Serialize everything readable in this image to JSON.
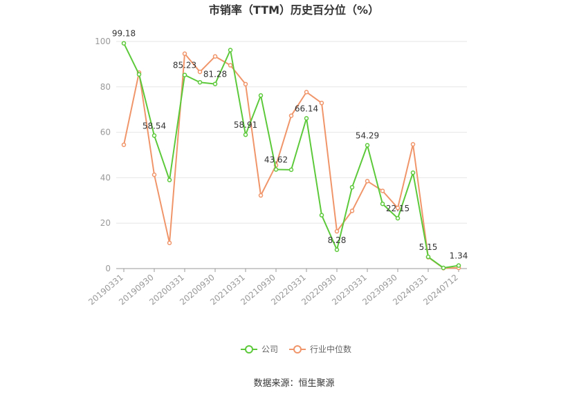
{
  "chart_data": {
    "type": "line",
    "title": "市销率（TTM）历史百分位（%）",
    "source": "数据来源：恒生聚源",
    "ylim": [
      0,
      100
    ],
    "yticks": [
      0,
      20,
      40,
      60,
      80,
      100
    ],
    "xticks": [
      "20190331",
      "20190930",
      "20200331",
      "20200930",
      "20210331",
      "20210930",
      "20220331",
      "20220930",
      "20230331",
      "20230930",
      "20240331",
      "20240712"
    ],
    "grid": true,
    "legend_position": "bottom",
    "series": [
      {
        "name": "公司",
        "color": "#5cc93a",
        "values": [
          99.18,
          85.5,
          58.54,
          39.0,
          85.23,
          82.0,
          81.28,
          96.2,
          58.91,
          76.2,
          43.62,
          43.5,
          66.14,
          23.5,
          8.28,
          35.8,
          54.29,
          28.5,
          22.15,
          42.2,
          5.15,
          0.3,
          1.34
        ]
      },
      {
        "name": "行业中位数",
        "color": "#f0956a",
        "values": [
          54.5,
          86.3,
          41.3,
          11.3,
          94.6,
          86.6,
          93.4,
          89.5,
          81.2,
          32.2,
          45.5,
          67.3,
          77.7,
          72.9,
          16.4,
          25.4,
          38.5,
          34.2,
          26.7,
          54.7,
          5.0,
          0.2,
          0.3
        ]
      }
    ],
    "data_labels": [
      {
        "series": 0,
        "index": 0,
        "text": "99.18"
      },
      {
        "series": 0,
        "index": 2,
        "text": "58.54"
      },
      {
        "series": 0,
        "index": 4,
        "text": "85.23"
      },
      {
        "series": 0,
        "index": 6,
        "text": "81.28"
      },
      {
        "series": 0,
        "index": 8,
        "text": "58.91"
      },
      {
        "series": 0,
        "index": 10,
        "text": "43.62"
      },
      {
        "series": 0,
        "index": 12,
        "text": "66.14"
      },
      {
        "series": 0,
        "index": 14,
        "text": "8.28"
      },
      {
        "series": 0,
        "index": 16,
        "text": "54.29"
      },
      {
        "series": 0,
        "index": 18,
        "text": "22.15"
      },
      {
        "series": 0,
        "index": 20,
        "text": "5.15"
      },
      {
        "series": 0,
        "index": 22,
        "text": "1.34"
      }
    ]
  }
}
